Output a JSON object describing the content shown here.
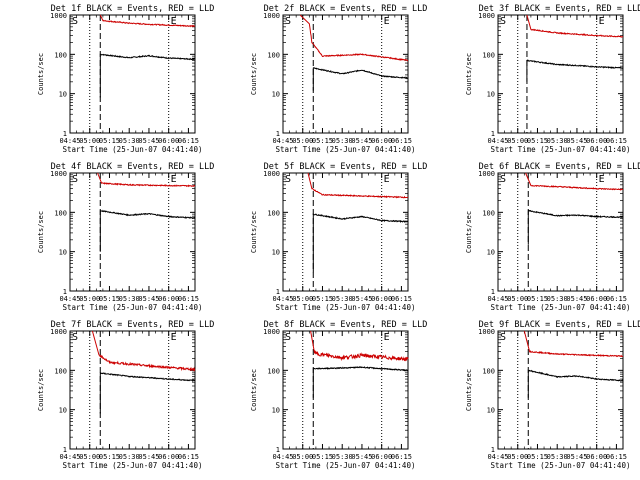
{
  "figure": {
    "background": "#ffffff",
    "colors": {
      "events": "#000000",
      "lld": "#cc0000",
      "axis": "#000000"
    }
  },
  "chart_data": [
    {
      "type": "line",
      "title": "Det 1f BLACK = Events, RED = LLD",
      "xlabel": "Start Time (25-Jun-07 04:41:40)",
      "ylabel": "Counts/sec",
      "yscale": "log",
      "ylim": [
        1,
        1000
      ],
      "xlim": [
        "04:45",
        "06:20"
      ],
      "x_ticks": [
        "04:45",
        "05:00",
        "05:15",
        "05:30",
        "05:45",
        "06:00",
        "06:15"
      ],
      "y_ticks": [
        "1",
        "10",
        "100",
        "1000"
      ],
      "markers": {
        "start": "S",
        "end": "E"
      },
      "dotted_lines": [
        "05:00",
        "06:00"
      ],
      "dashed_line": "05:08",
      "data_start": "05:08",
      "series": [
        {
          "color": "#000000",
          "values": [
            [
              "05:08",
              8
            ],
            [
              "05:08",
              100
            ],
            [
              "05:30",
              82
            ],
            [
              "05:45",
              92
            ],
            [
              "06:00",
              80
            ],
            [
              "06:20",
              75
            ]
          ]
        },
        {
          "color": "#cc0000",
          "values": [
            [
              "05:08",
              1000
            ],
            [
              "05:10",
              720
            ],
            [
              "05:30",
              620
            ],
            [
              "05:45",
              580
            ],
            [
              "06:20",
              520
            ]
          ]
        }
      ]
    },
    {
      "type": "line",
      "title": "Det 2f BLACK = Events, RED = LLD",
      "xlabel": "Start Time (25-Jun-07 04:41:40)",
      "ylabel": "Counts/sec",
      "yscale": "log",
      "ylim": [
        1,
        1000
      ],
      "xlim": [
        "04:45",
        "06:20"
      ],
      "x_ticks": [
        "04:45",
        "05:00",
        "05:15",
        "05:30",
        "05:45",
        "06:00",
        "06:15"
      ],
      "y_ticks": [
        "1",
        "10",
        "100",
        "1000"
      ],
      "markers": {
        "start": "S",
        "end": "E"
      },
      "dotted_lines": [
        "05:00",
        "06:00"
      ],
      "dashed_line": "05:08",
      "data_start": "05:08",
      "series": [
        {
          "color": "#000000",
          "values": [
            [
              "05:08",
              12
            ],
            [
              "05:08",
              45
            ],
            [
              "05:30",
              32
            ],
            [
              "05:45",
              40
            ],
            [
              "06:00",
              28
            ],
            [
              "06:20",
              25
            ]
          ]
        },
        {
          "color": "#cc0000",
          "values": [
            [
              "04:58",
              1000
            ],
            [
              "05:05",
              600
            ],
            [
              "05:07",
              200
            ],
            [
              "05:15",
              90
            ],
            [
              "05:45",
              100
            ],
            [
              "06:20",
              70
            ]
          ]
        }
      ]
    },
    {
      "type": "line",
      "title": "Det 3f BLACK = Events, RED = LLD",
      "xlabel": "Start Time (25-Jun-07 04:41:40)",
      "ylabel": "Counts/sec",
      "yscale": "log",
      "ylim": [
        1,
        1000
      ],
      "xlim": [
        "04:45",
        "06:20"
      ],
      "x_ticks": [
        "04:45",
        "05:00",
        "05:15",
        "05:30",
        "05:45",
        "06:00",
        "06:15"
      ],
      "y_ticks": [
        "1",
        "10",
        "100",
        "1000"
      ],
      "markers": {
        "start": "S",
        "end": "E"
      },
      "dotted_lines": [
        "05:00",
        "06:00"
      ],
      "dashed_line": "05:07",
      "data_start": "05:07",
      "series": [
        {
          "color": "#000000",
          "values": [
            [
              "05:07",
              20
            ],
            [
              "05:07",
              70
            ],
            [
              "05:30",
              55
            ],
            [
              "05:45",
              52
            ],
            [
              "06:00",
              48
            ],
            [
              "06:20",
              45
            ]
          ]
        },
        {
          "color": "#cc0000",
          "values": [
            [
              "05:07",
              1000
            ],
            [
              "05:10",
              430
            ],
            [
              "05:30",
              350
            ],
            [
              "06:00",
              300
            ],
            [
              "06:20",
              280
            ]
          ]
        }
      ]
    },
    {
      "type": "line",
      "title": "Det 4f BLACK = Events, RED = LLD",
      "xlabel": "Start Time (25-Jun-07 04:41:40)",
      "ylabel": "Counts/sec",
      "yscale": "log",
      "ylim": [
        1,
        1000
      ],
      "xlim": [
        "04:45",
        "06:20"
      ],
      "x_ticks": [
        "04:45",
        "05:00",
        "05:15",
        "05:30",
        "05:45",
        "06:00",
        "06:15"
      ],
      "y_ticks": [
        "1",
        "10",
        "100",
        "1000"
      ],
      "markers": {
        "start": "S",
        "end": "E"
      },
      "dotted_lines": [
        "05:00",
        "06:00"
      ],
      "dashed_line": "05:08",
      "data_start": "05:08",
      "series": [
        {
          "color": "#000000",
          "values": [
            [
              "05:08",
              10
            ],
            [
              "05:08",
              110
            ],
            [
              "05:30",
              85
            ],
            [
              "05:45",
              92
            ],
            [
              "06:00",
              78
            ],
            [
              "06:20",
              72
            ]
          ]
        },
        {
          "color": "#cc0000",
          "values": [
            [
              "05:06",
              1000
            ],
            [
              "05:09",
              550
            ],
            [
              "05:30",
              500
            ],
            [
              "06:00",
              480
            ],
            [
              "06:20",
              470
            ]
          ]
        }
      ]
    },
    {
      "type": "line",
      "title": "Det 5f BLACK = Events, RED = LLD",
      "xlabel": "Start Time (25-Jun-07 04:41:40)",
      "ylabel": "Counts/sec",
      "yscale": "log",
      "ylim": [
        1,
        1000
      ],
      "xlim": [
        "04:45",
        "06:20"
      ],
      "x_ticks": [
        "04:45",
        "05:00",
        "05:15",
        "05:30",
        "05:45",
        "06:00",
        "06:15"
      ],
      "y_ticks": [
        "1",
        "10",
        "100",
        "1000"
      ],
      "markers": {
        "start": "S",
        "end": "E"
      },
      "dotted_lines": [
        "05:00",
        "06:00"
      ],
      "dashed_line": "05:08",
      "data_start": "05:08",
      "series": [
        {
          "color": "#000000",
          "values": [
            [
              "05:08",
              3
            ],
            [
              "05:08",
              90
            ],
            [
              "05:30",
              68
            ],
            [
              "05:45",
              78
            ],
            [
              "06:00",
              62
            ],
            [
              "06:20",
              58
            ]
          ]
        },
        {
          "color": "#cc0000",
          "values": [
            [
              "05:04",
              1000
            ],
            [
              "05:07",
              400
            ],
            [
              "05:15",
              280
            ],
            [
              "05:45",
              260
            ],
            [
              "06:20",
              240
            ]
          ]
        }
      ]
    },
    {
      "type": "line",
      "title": "Det 6f BLACK = Events, RED = LLD",
      "xlabel": "Start Time (25-Jun-07 04:41:40)",
      "ylabel": "Counts/sec",
      "yscale": "log",
      "ylim": [
        1,
        1000
      ],
      "xlim": [
        "04:45",
        "06:20"
      ],
      "x_ticks": [
        "04:45",
        "05:00",
        "05:15",
        "05:30",
        "05:45",
        "06:00",
        "06:15"
      ],
      "y_ticks": [
        "1",
        "10",
        "100",
        "1000"
      ],
      "markers": {
        "start": "S",
        "end": "E"
      },
      "dotted_lines": [
        "05:00",
        "06:00"
      ],
      "dashed_line": "05:08",
      "data_start": "05:08",
      "series": [
        {
          "color": "#000000",
          "values": [
            [
              "05:08",
              15
            ],
            [
              "05:08",
              110
            ],
            [
              "05:30",
              82
            ],
            [
              "05:45",
              85
            ],
            [
              "06:00",
              78
            ],
            [
              "06:20",
              75
            ]
          ]
        },
        {
          "color": "#cc0000",
          "values": [
            [
              "05:06",
              1000
            ],
            [
              "05:10",
              480
            ],
            [
              "05:30",
              450
            ],
            [
              "06:00",
              400
            ],
            [
              "06:20",
              380
            ]
          ]
        }
      ]
    },
    {
      "type": "line",
      "title": "Det 7f BLACK = Events, RED = LLD",
      "xlabel": "Start Time (25-Jun-07 04:41:40)",
      "ylabel": "Counts/sec",
      "yscale": "log",
      "ylim": [
        1,
        1000
      ],
      "xlim": [
        "04:45",
        "06:20"
      ],
      "x_ticks": [
        "04:45",
        "05:00",
        "05:15",
        "05:30",
        "05:45",
        "06:00",
        "06:15"
      ],
      "y_ticks": [
        "1",
        "10",
        "100",
        "1000"
      ],
      "markers": {
        "start": "S",
        "end": "E"
      },
      "dotted_lines": [
        "05:00",
        "06:00"
      ],
      "dashed_line": "05:08",
      "data_start": "05:08",
      "series": [
        {
          "color": "#000000",
          "values": [
            [
              "05:08",
              8
            ],
            [
              "05:08",
              85
            ],
            [
              "05:30",
              70
            ],
            [
              "05:45",
              65
            ],
            [
              "06:00",
              60
            ],
            [
              "06:20",
              55
            ]
          ]
        },
        {
          "color": "#cc0000",
          "values": [
            [
              "05:02",
              1000
            ],
            [
              "05:07",
              250
            ],
            [
              "05:15",
              160
            ],
            [
              "05:45",
              130
            ],
            [
              "06:20",
              105
            ]
          ]
        }
      ]
    },
    {
      "type": "line",
      "title": "Det 8f BLACK = Events, RED = LLD",
      "xlabel": "Start Time (25-Jun-07 04:41:40)",
      "ylabel": "Counts/sec",
      "yscale": "log",
      "ylim": [
        1,
        1000
      ],
      "xlim": [
        "04:45",
        "06:20"
      ],
      "x_ticks": [
        "04:45",
        "05:00",
        "05:15",
        "05:30",
        "05:45",
        "06:00",
        "06:15"
      ],
      "y_ticks": [
        "1",
        "10",
        "100",
        "1000"
      ],
      "markers": {
        "start": "S",
        "end": "E"
      },
      "dotted_lines": [
        "05:00",
        "06:00"
      ],
      "dashed_line": "05:08",
      "data_start": "05:08",
      "series": [
        {
          "color": "#000000",
          "values": [
            [
              "05:08",
              20
            ],
            [
              "05:08",
              110
            ],
            [
              "05:30",
              115
            ],
            [
              "05:45",
              120
            ],
            [
              "06:00",
              110
            ],
            [
              "06:20",
              100
            ]
          ]
        },
        {
          "color": "#cc0000",
          "values": [
            [
              "05:06",
              1000
            ],
            [
              "05:09",
              270
            ],
            [
              "05:30",
              210
            ],
            [
              "05:45",
              240
            ],
            [
              "06:20",
              190
            ]
          ]
        }
      ]
    },
    {
      "type": "line",
      "title": "Det 9f BLACK = Events, RED = LLD",
      "xlabel": "Start Time (25-Jun-07 04:41:40)",
      "ylabel": "Counts/sec",
      "yscale": "log",
      "ylim": [
        1,
        1000
      ],
      "xlim": [
        "04:45",
        "06:20"
      ],
      "x_ticks": [
        "04:45",
        "05:00",
        "05:15",
        "05:30",
        "05:45",
        "06:00",
        "06:15"
      ],
      "y_ticks": [
        "1",
        "10",
        "100",
        "1000"
      ],
      "markers": {
        "start": "S",
        "end": "E"
      },
      "dotted_lines": [
        "05:00",
        "06:00"
      ],
      "dashed_line": "05:08",
      "data_start": "05:08",
      "series": [
        {
          "color": "#000000",
          "values": [
            [
              "05:08",
              20
            ],
            [
              "05:08",
              100
            ],
            [
              "05:30",
              68
            ],
            [
              "05:45",
              72
            ],
            [
              "06:00",
              60
            ],
            [
              "06:20",
              55
            ]
          ]
        },
        {
          "color": "#cc0000",
          "values": [
            [
              "05:05",
              1000
            ],
            [
              "05:09",
              300
            ],
            [
              "05:30",
              260
            ],
            [
              "06:00",
              240
            ],
            [
              "06:20",
              230
            ]
          ]
        }
      ]
    }
  ]
}
